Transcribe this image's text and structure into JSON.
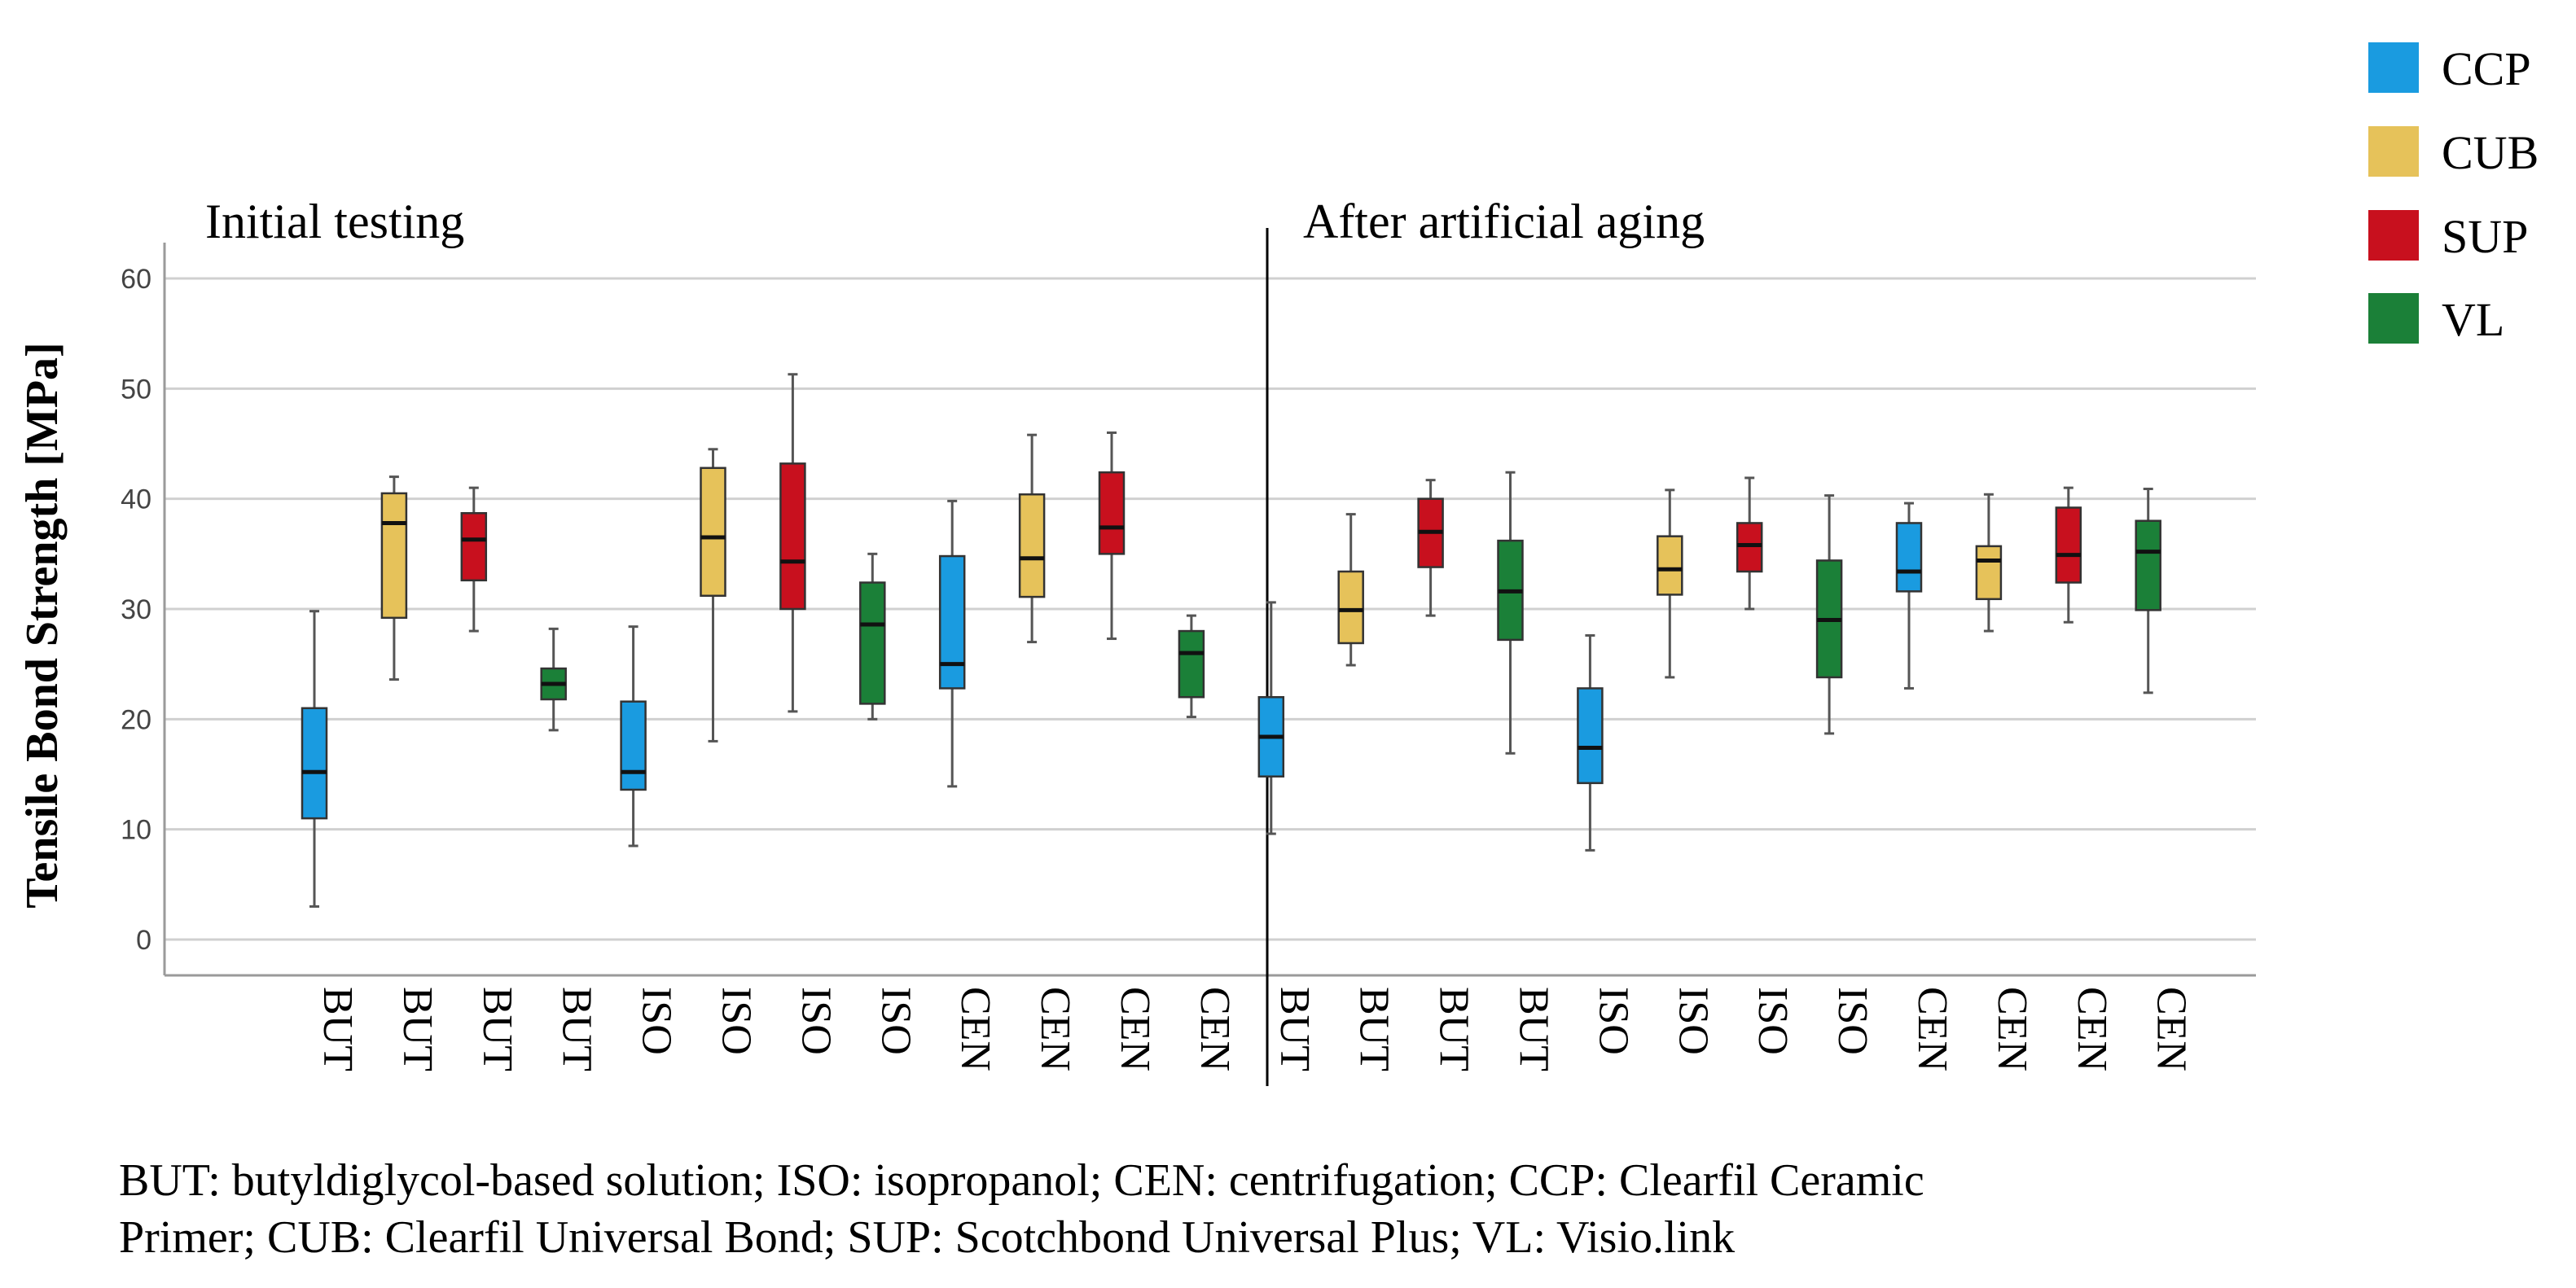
{
  "chart_data": {
    "type": "boxplot",
    "ylabel": "Tensile Bond Strength [MPa]",
    "ylim": [
      -3,
      64
    ],
    "yticks": [
      0,
      10,
      20,
      30,
      40,
      50,
      60
    ],
    "grid": true,
    "panels": [
      {
        "title": "Initial testing"
      },
      {
        "title": "After artificial aging"
      }
    ],
    "legend": [
      {
        "name": "CCP",
        "color": "#1a9be0"
      },
      {
        "name": "CUB",
        "color": "#e6c25a"
      },
      {
        "name": "SUP",
        "color": "#c8101e"
      },
      {
        "name": "VL",
        "color": "#1b8038"
      }
    ],
    "boxes": [
      {
        "panel": 0,
        "category": "BUT",
        "series": "CCP",
        "min": 3,
        "q1": 11,
        "median": 15.2,
        "q3": 21,
        "max": 29.8
      },
      {
        "panel": 0,
        "category": "BUT",
        "series": "CUB",
        "min": 23.6,
        "q1": 29.2,
        "median": 37.8,
        "q3": 40.5,
        "max": 42
      },
      {
        "panel": 0,
        "category": "BUT",
        "series": "SUP",
        "min": 28,
        "q1": 32.6,
        "median": 36.3,
        "q3": 38.7,
        "max": 41
      },
      {
        "panel": 0,
        "category": "BUT",
        "series": "VL",
        "min": 19,
        "q1": 21.8,
        "median": 23.2,
        "q3": 24.6,
        "max": 28.2
      },
      {
        "panel": 0,
        "category": "ISO",
        "series": "CCP",
        "min": 8.5,
        "q1": 13.6,
        "median": 15.2,
        "q3": 21.6,
        "max": 28.4
      },
      {
        "panel": 0,
        "category": "ISO",
        "series": "CUB",
        "min": 18,
        "q1": 31.2,
        "median": 36.5,
        "q3": 42.8,
        "max": 44.5
      },
      {
        "panel": 0,
        "category": "ISO",
        "series": "SUP",
        "min": 20.7,
        "q1": 30,
        "median": 34.3,
        "q3": 43.2,
        "max": 51.3
      },
      {
        "panel": 0,
        "category": "ISO",
        "series": "VL",
        "min": 20,
        "q1": 21.4,
        "median": 28.6,
        "q3": 32.4,
        "max": 35
      },
      {
        "panel": 0,
        "category": "CEN",
        "series": "CCP",
        "min": 13.9,
        "q1": 22.8,
        "median": 25,
        "q3": 34.8,
        "max": 39.8
      },
      {
        "panel": 0,
        "category": "CEN",
        "series": "CUB",
        "min": 27,
        "q1": 31.1,
        "median": 34.6,
        "q3": 40.4,
        "max": 45.8
      },
      {
        "panel": 0,
        "category": "CEN",
        "series": "SUP",
        "min": 27.3,
        "q1": 35,
        "median": 37.4,
        "q3": 42.4,
        "max": 46
      },
      {
        "panel": 0,
        "category": "CEN",
        "series": "VL",
        "min": 20.2,
        "q1": 22,
        "median": 26,
        "q3": 28,
        "max": 29.4
      },
      {
        "panel": 1,
        "category": "BUT",
        "series": "CCP",
        "min": 9.6,
        "q1": 14.8,
        "median": 18.4,
        "q3": 22,
        "max": 30.6
      },
      {
        "panel": 1,
        "category": "BUT",
        "series": "CUB",
        "min": 24.9,
        "q1": 26.9,
        "median": 29.9,
        "q3": 33.4,
        "max": 38.6
      },
      {
        "panel": 1,
        "category": "BUT",
        "series": "SUP",
        "min": 29.4,
        "q1": 33.8,
        "median": 37,
        "q3": 40,
        "max": 41.7
      },
      {
        "panel": 1,
        "category": "BUT",
        "series": "VL",
        "min": 16.9,
        "q1": 27.2,
        "median": 31.6,
        "q3": 36.2,
        "max": 42.4
      },
      {
        "panel": 1,
        "category": "ISO",
        "series": "CCP",
        "min": 8.1,
        "q1": 14.2,
        "median": 17.4,
        "q3": 22.8,
        "max": 27.6
      },
      {
        "panel": 1,
        "category": "ISO",
        "series": "CUB",
        "min": 23.8,
        "q1": 31.3,
        "median": 33.6,
        "q3": 36.6,
        "max": 40.8
      },
      {
        "panel": 1,
        "category": "ISO",
        "series": "SUP",
        "min": 30,
        "q1": 33.4,
        "median": 35.8,
        "q3": 37.8,
        "max": 41.9
      },
      {
        "panel": 1,
        "category": "ISO",
        "series": "VL",
        "min": 18.7,
        "q1": 23.8,
        "median": 29,
        "q3": 34.4,
        "max": 40.3
      },
      {
        "panel": 1,
        "category": "CEN",
        "series": "CCP",
        "min": 22.8,
        "q1": 31.6,
        "median": 33.4,
        "q3": 37.8,
        "max": 39.6
      },
      {
        "panel": 1,
        "category": "CEN",
        "series": "CUB",
        "min": 28,
        "q1": 30.9,
        "median": 34.4,
        "q3": 35.7,
        "max": 40.4
      },
      {
        "panel": 1,
        "category": "CEN",
        "series": "SUP",
        "min": 28.8,
        "q1": 32.4,
        "median": 34.9,
        "q3": 39.2,
        "max": 41
      },
      {
        "panel": 1,
        "category": "CEN",
        "series": "VL",
        "min": 22.4,
        "q1": 29.9,
        "median": 35.2,
        "q3": 38,
        "max": 40.9
      }
    ]
  },
  "footnote": {
    "line1": "BUT: butyldiglycol-based solution; ISO: isopropanol; CEN: centrifugation; CCP: Clearfil Ceramic",
    "line2": "Primer; CUB: Clearfil Universal Bond; SUP: Scotchbond Universal Plus; VL: Visio.link"
  }
}
